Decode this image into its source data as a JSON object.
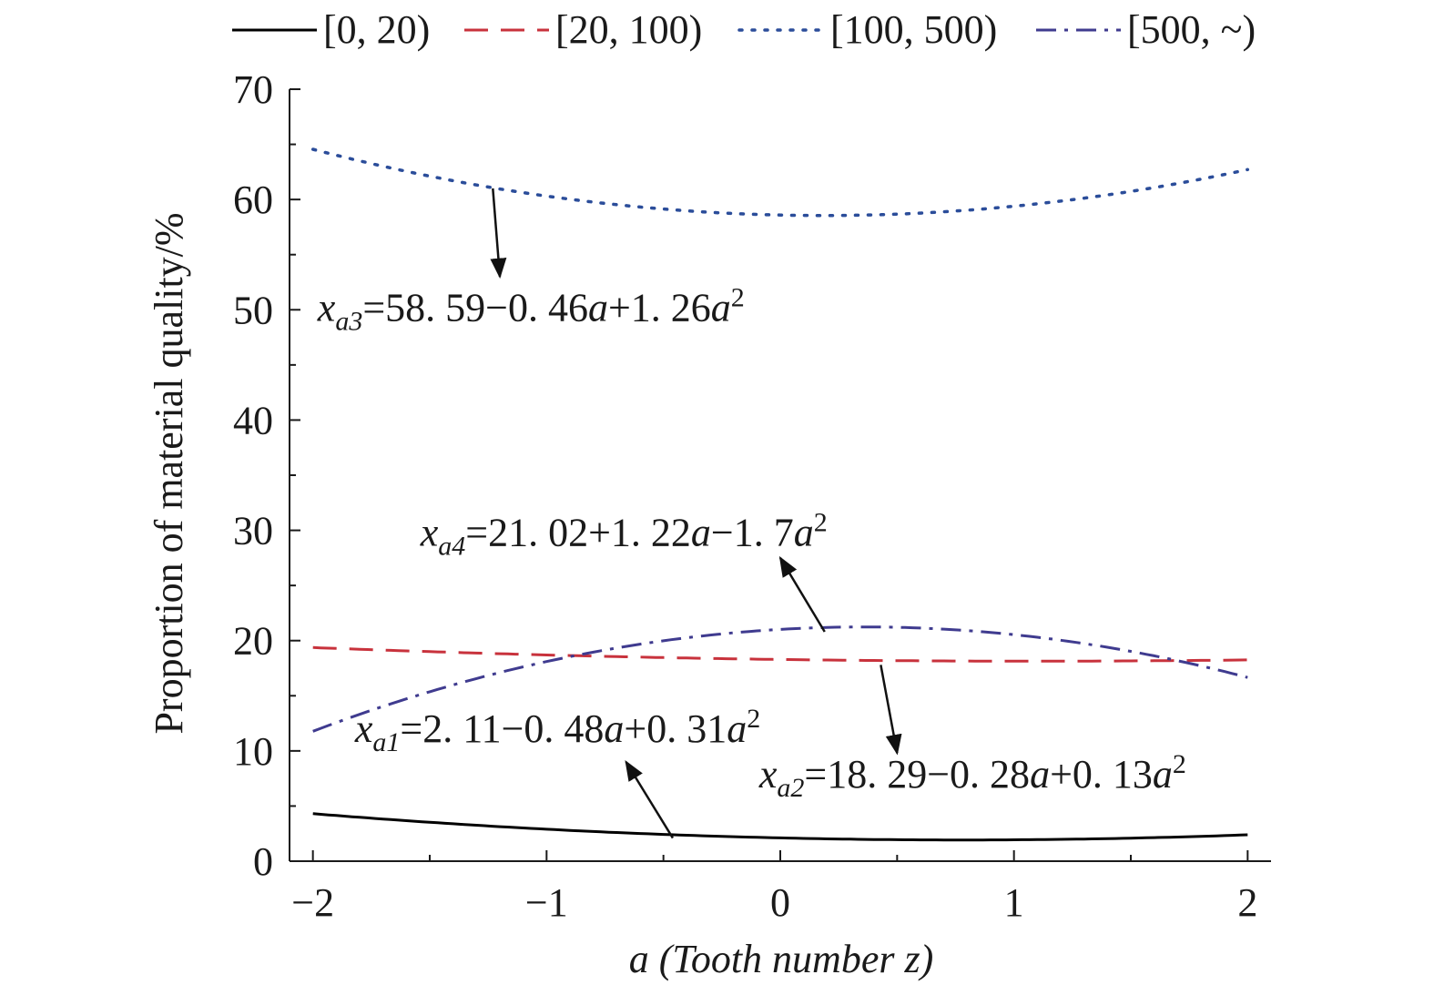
{
  "chart_data": {
    "type": "line",
    "xlabel": {
      "var": "a",
      "rest": " (Tooth number z)"
    },
    "ylabel": "Proportion of material quality/%",
    "xlim": [
      -2.1,
      2.1
    ],
    "ylim": [
      0,
      70
    ],
    "xticks": [
      -2,
      -1,
      0,
      1,
      2
    ],
    "xtick_labels": [
      "−2",
      "−1",
      "0",
      "1",
      "2"
    ],
    "yticks": [
      0,
      10,
      20,
      30,
      40,
      50,
      60,
      70
    ],
    "ytick_labels": [
      "0",
      "10",
      "20",
      "30",
      "40",
      "50",
      "60",
      "70"
    ],
    "grid": false,
    "legend_position": "top",
    "x_domain": [
      -2,
      2
    ],
    "series": [
      {
        "name": "[0, 20)",
        "color": "#000000",
        "dash": "solid",
        "coef": [
          2.11,
          -0.48,
          0.31
        ],
        "equation": {
          "sub": "a1",
          "text": "=2. 11−0. 48a+0. 31a",
          "parts": [
            "=2. 11−0. 48",
            "a",
            "+0. 31",
            "a",
            "2"
          ]
        }
      },
      {
        "name": "[20, 100)",
        "color": "#c8323c",
        "dash": "dashed",
        "coef": [
          18.29,
          -0.28,
          0.13
        ],
        "equation": {
          "sub": "a2",
          "text": "=18. 29−0. 28a+0. 13a",
          "parts": [
            "=18. 29−0. 28",
            "a",
            "+0. 13",
            "a",
            "2"
          ]
        }
      },
      {
        "name": "[100, 500)",
        "color": "#2b4d9a",
        "dash": "dotted",
        "coef": [
          58.59,
          -0.46,
          1.26
        ],
        "equation": {
          "sub": "a3",
          "text": "=58. 59−0. 46a+1. 26a",
          "parts": [
            "=58. 59−0. 46",
            "a",
            "+1. 26",
            "a",
            "2"
          ]
        }
      },
      {
        "name": "[500, ~)",
        "color": "#3f3b8f",
        "dash": "dashdot",
        "coef": [
          21.02,
          1.22,
          -1.7
        ],
        "equation": {
          "sub": "a4",
          "text": "=21. 02+1. 22a−1. 7a",
          "parts": [
            "=21. 02+1. 22",
            "a",
            "−1. 7",
            "a",
            "2"
          ]
        }
      }
    ],
    "annotations": [
      {
        "series": "[100, 500)",
        "label_x": -1.98,
        "label_y": 49.0,
        "arrow_from": [
          -1.23,
          61.0
        ],
        "arrow_to": [
          -1.2,
          53.0
        ]
      },
      {
        "series": "[500, ~)",
        "label_x": -1.54,
        "label_y": 28.6,
        "arrow_from": [
          0.19,
          20.8
        ],
        "arrow_to": [
          0.0,
          27.5
        ]
      },
      {
        "series": "[0, 20)",
        "label_x": -1.82,
        "label_y": 10.8,
        "arrow_from": [
          -0.46,
          2.1
        ],
        "arrow_to": [
          -0.66,
          9.0
        ]
      },
      {
        "series": "[20, 100)",
        "label_x": -0.09,
        "label_y": 6.7,
        "arrow_from": [
          0.43,
          17.8
        ],
        "arrow_to": [
          0.5,
          9.8
        ]
      }
    ],
    "x_var": "x"
  }
}
